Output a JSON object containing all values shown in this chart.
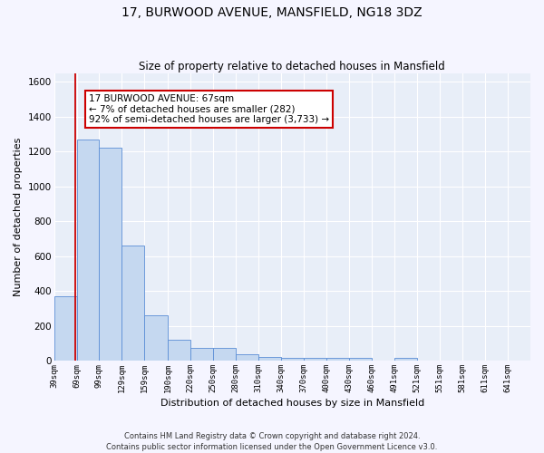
{
  "title1": "17, BURWOOD AVENUE, MANSFIELD, NG18 3DZ",
  "title2": "Size of property relative to detached houses in Mansfield",
  "xlabel": "Distribution of detached houses by size in Mansfield",
  "ylabel": "Number of detached properties",
  "bin_labels": [
    "39sqm",
    "69sqm",
    "99sqm",
    "129sqm",
    "159sqm",
    "190sqm",
    "220sqm",
    "250sqm",
    "280sqm",
    "310sqm",
    "340sqm",
    "370sqm",
    "400sqm",
    "430sqm",
    "460sqm",
    "491sqm",
    "521sqm",
    "551sqm",
    "581sqm",
    "611sqm",
    "641sqm"
  ],
  "bin_edges": [
    39,
    69,
    99,
    129,
    159,
    190,
    220,
    250,
    280,
    310,
    340,
    370,
    400,
    430,
    460,
    491,
    521,
    551,
    581,
    611,
    641
  ],
  "bar_heights": [
    370,
    1270,
    1220,
    660,
    260,
    120,
    75,
    75,
    35,
    20,
    15,
    15,
    15,
    15,
    0,
    15,
    0,
    0,
    0,
    0
  ],
  "bar_color": "#c5d8f0",
  "bar_edge_color": "#5b8ed6",
  "bg_color": "#e8eef8",
  "grid_color": "#ffffff",
  "property_line_x": 67,
  "property_line_color": "#cc0000",
  "annotation_text": "17 BURWOOD AVENUE: 67sqm\n← 7% of detached houses are smaller (282)\n92% of semi-detached houses are larger (3,733) →",
  "annotation_box_color": "#ffffff",
  "annotation_box_edge": "#cc0000",
  "ylim": [
    0,
    1650
  ],
  "yticks": [
    0,
    200,
    400,
    600,
    800,
    1000,
    1200,
    1400,
    1600
  ],
  "footer1": "Contains HM Land Registry data © Crown copyright and database right 2024.",
  "footer2": "Contains public sector information licensed under the Open Government Licence v3.0."
}
